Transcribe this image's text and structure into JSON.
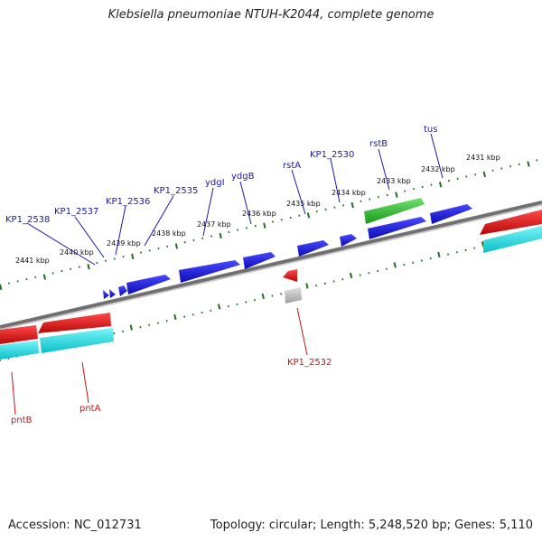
{
  "title": "Klebsiella pneumoniae NTUH-K2044, complete genome",
  "footer": {
    "accession": "Accession: NC_012731",
    "topology": "Topology: circular; Length: 5,248,520 bp; Genes: 5,110"
  },
  "scale": {
    "top_labels": [
      "2431 kbp",
      "2432 kbp",
      "2433 kbp",
      "2434 kbp",
      "2435 kbp",
      "2436 kbp",
      "2437 kbp",
      "2438 kbp",
      "2439 kbp",
      "2440 kbp",
      "2441 kbp"
    ]
  },
  "genes": {
    "top": [
      "tus",
      "rstB",
      "KP1_2530",
      "rstA",
      "ydgB",
      "ydgI",
      "KP1_2535",
      "KP1_2536",
      "KP1_2537",
      "KP1_2538"
    ],
    "bottom": [
      "KP1_2532",
      "pntA",
      "pntB"
    ]
  },
  "colors": {
    "cds_blue": "#1414dc",
    "cds_red": "#e01010",
    "cds_cyan": "#10d8e0",
    "cds_green": "#30c030",
    "cds_gray": "#b8b8b8",
    "tick_green": "#207020",
    "backbone": "#808080",
    "label_blue": "#1a1aa6",
    "label_red": "#c81414"
  }
}
